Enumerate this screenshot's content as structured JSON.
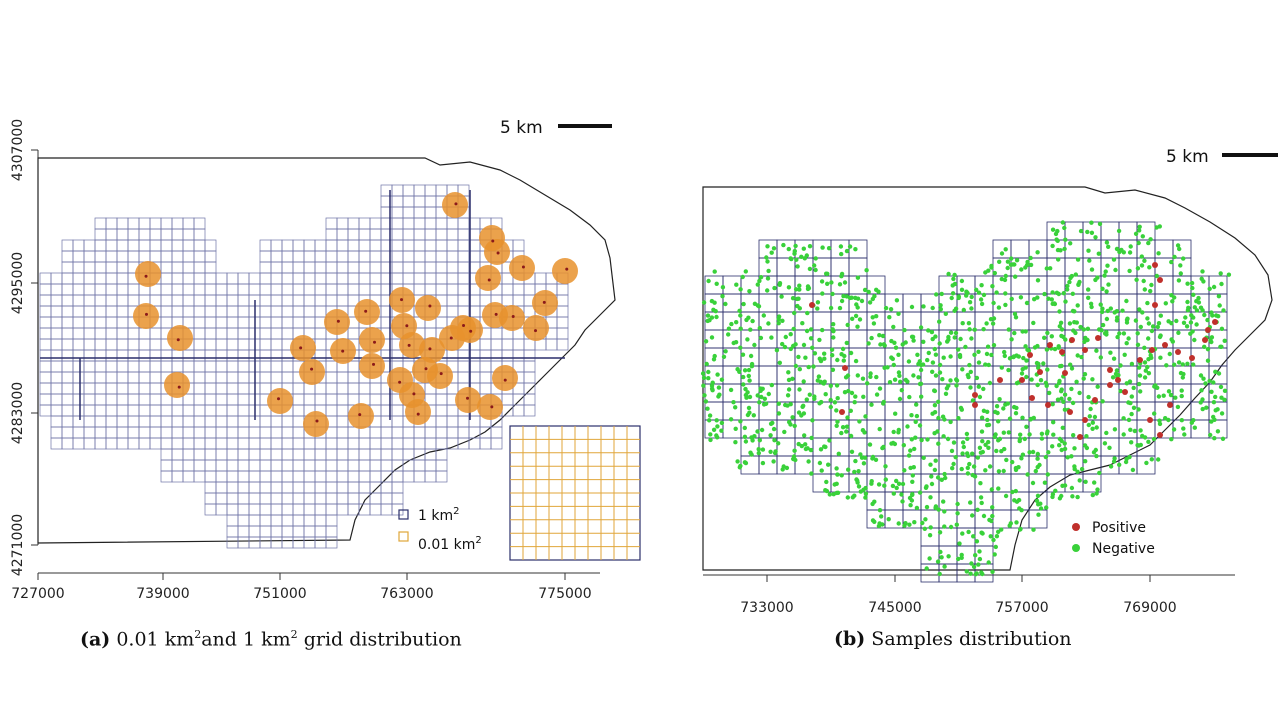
{
  "panel_a": {
    "scale_bar": "5 km",
    "y_ticks": [
      "4307000",
      "4295000",
      "4283000",
      "4271000"
    ],
    "x_ticks": [
      "727000",
      "739000",
      "751000",
      "763000",
      "775000"
    ],
    "legend": [
      {
        "label": "1 km",
        "sup": "2",
        "color": "#2b2f6b"
      },
      {
        "label": "0.01 km",
        "sup": "2",
        "color": "#e0a63a"
      }
    ],
    "caption": {
      "tag": "(a)",
      "text_1": "0.01 km",
      "sup_1": "2",
      "text_2": "and 1 km",
      "sup_2": "2",
      "text_3": " grid distribution"
    },
    "colors": {
      "grid": "#2b2f6b",
      "grid_light": "#b9bdd8",
      "buffer": "#e8922d",
      "points": "#8b1a1a",
      "inset_grid": "#e0a63a"
    }
  },
  "panel_b": {
    "scale_bar": "5 km",
    "x_ticks": [
      "733000",
      "745000",
      "757000",
      "769000"
    ],
    "legend": [
      {
        "label": "Positive",
        "color": "#c0302c"
      },
      {
        "label": "Negative",
        "color": "#39d13a"
      }
    ],
    "caption": {
      "tag": "(b)",
      "text": " Samples distribution"
    },
    "colors": {
      "grid": "#2b2f6b",
      "negative": "#39d13a",
      "positive": "#c0302c"
    }
  }
}
